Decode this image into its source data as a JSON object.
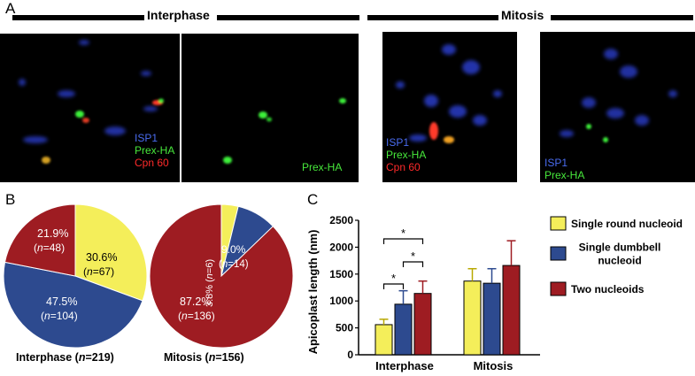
{
  "panels": {
    "a": "A",
    "b": "B",
    "c": "C"
  },
  "headers": {
    "interphase": "Interphase",
    "mitosis": "Mitosis"
  },
  "micrographs": [
    {
      "labels": [
        "ISP1",
        "Prex-HA",
        "Cpn 60"
      ],
      "colors": [
        "#4a6cf0",
        "#47e83b",
        "#ff2a2a"
      ]
    },
    {
      "labels": [
        "Prex-HA"
      ],
      "colors": [
        "#47e83b"
      ]
    },
    {
      "labels": [
        "ISP1",
        "Prex-HA",
        "Cpn 60"
      ],
      "colors": [
        "#4a6cf0",
        "#47e83b",
        "#ff2a2a"
      ]
    },
    {
      "labels": [
        "ISP1",
        "Prex-HA"
      ],
      "colors": [
        "#4a6cf0",
        "#47e83b"
      ]
    }
  ],
  "pies": {
    "interphase": {
      "caption_prefix": "Interphase (",
      "caption_n": "n",
      "caption_suffix": "=219)",
      "slices": [
        {
          "pct": "30.6%",
          "n": "67",
          "value": 30.6,
          "color": "#f4ee5a"
        },
        {
          "pct": "47.5%",
          "n": "104",
          "value": 47.5,
          "color": "#2d4a8f"
        },
        {
          "pct": "21.9%",
          "n": "48",
          "value": 21.9,
          "color": "#9e1c22"
        }
      ]
    },
    "mitosis": {
      "caption_prefix": "Mitosis (",
      "caption_n": "n",
      "caption_suffix": "=156)",
      "slices": [
        {
          "pct": "3.8%",
          "n": "6",
          "value": 3.8,
          "color": "#f4ee5a"
        },
        {
          "pct": "9.0%",
          "n": "14",
          "value": 9.0,
          "color": "#2d4a8f"
        },
        {
          "pct": "87.2%",
          "n": "136",
          "value": 87.2,
          "color": "#9e1c22"
        }
      ]
    }
  },
  "chart_data": {
    "type": "bar",
    "ylabel": "Apicoplast length (nm)",
    "ylim": [
      0,
      2500
    ],
    "yticks": [
      "0",
      "500",
      "1000",
      "1500",
      "2000",
      "2500"
    ],
    "categories": [
      "Interphase",
      "Mitosis"
    ],
    "series": [
      {
        "name": "Single round nucleoid",
        "color": "#f4ee5a",
        "values": [
          560,
          1370
        ],
        "errors": [
          100,
          230
        ]
      },
      {
        "name": "Single dumbbell nucleoid",
        "color": "#2d4a8f",
        "values": [
          940,
          1330
        ],
        "errors": [
          250,
          270
        ]
      },
      {
        "name": "Two nucleoids",
        "color": "#9e1c22",
        "values": [
          1140,
          1660
        ],
        "errors": [
          230,
          460
        ]
      }
    ],
    "legend_lines": [
      [
        "Single round nucleoid"
      ],
      [
        "Single dumbbell",
        "nucleoid"
      ],
      [
        "Two nucleoids"
      ]
    ],
    "significance": [
      "*",
      "*",
      "*"
    ],
    "legend_position": "right"
  }
}
